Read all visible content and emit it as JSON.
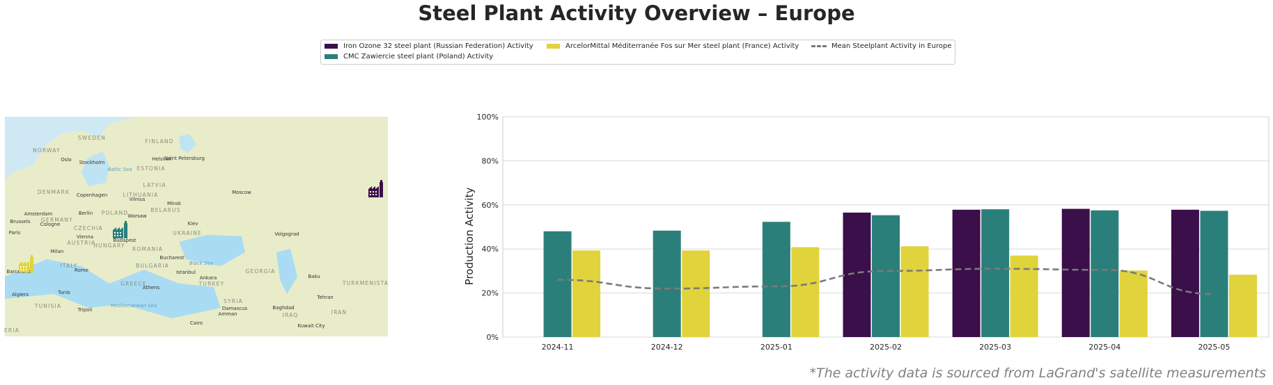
{
  "title": "Steel Plant Activity Overview – Europe",
  "footnote": "*The activity data is sourced from LaGrand's satellite measurements",
  "legend": {
    "items": [
      {
        "label": "Iron Ozone 32 steel plant (Russian Federation) Activity",
        "color": "#3b0f4a",
        "kind": "bar"
      },
      {
        "label": "CMC Zawiercie steel plant (Poland) Activity",
        "color": "#2b7f7b",
        "kind": "bar"
      },
      {
        "label": "ArcelorMittal Méditerranée Fos sur Mer steel plant (France) Activity",
        "color": "#e0d33c",
        "kind": "bar"
      },
      {
        "label": "Mean Steelplant Activity in Europe",
        "color": "#7a7a7a",
        "kind": "line"
      }
    ]
  },
  "map": {
    "labels": [
      {
        "text": "SWEDEN",
        "kind": "country"
      },
      {
        "text": "FINLAND",
        "kind": "country"
      },
      {
        "text": "NORWAY",
        "kind": "country"
      },
      {
        "text": "Oslo",
        "kind": "city"
      },
      {
        "text": "Stockholm",
        "kind": "city"
      },
      {
        "text": "Helsinki",
        "kind": "city"
      },
      {
        "text": "Saint Petersburg",
        "kind": "city"
      },
      {
        "text": "ESTONIA",
        "kind": "country"
      },
      {
        "text": "Baltic Sea",
        "kind": "water"
      },
      {
        "text": "DENMARK",
        "kind": "country"
      },
      {
        "text": "Copenhagen",
        "kind": "city"
      },
      {
        "text": "LITHUANIA",
        "kind": "country"
      },
      {
        "text": "LATVIA",
        "kind": "country"
      },
      {
        "text": "Moscow",
        "kind": "city"
      },
      {
        "text": "Vilnius",
        "kind": "city"
      },
      {
        "text": "Minsk",
        "kind": "city"
      },
      {
        "text": "BELARUS",
        "kind": "country"
      },
      {
        "text": "Amsterdam",
        "kind": "city"
      },
      {
        "text": "Berlin",
        "kind": "city"
      },
      {
        "text": "POLAND",
        "kind": "country"
      },
      {
        "text": "GERMANY",
        "kind": "country"
      },
      {
        "text": "Brussels",
        "kind": "city"
      },
      {
        "text": "Cologne",
        "kind": "city"
      },
      {
        "text": "Warsaw",
        "kind": "city"
      },
      {
        "text": "Kiev",
        "kind": "city"
      },
      {
        "text": "UKRAINE",
        "kind": "country"
      },
      {
        "text": "Paris",
        "kind": "city"
      },
      {
        "text": "CZECHIA",
        "kind": "country"
      },
      {
        "text": "Vienna",
        "kind": "city"
      },
      {
        "text": "AUSTRIA",
        "kind": "country"
      },
      {
        "text": "Budapest",
        "kind": "city"
      },
      {
        "text": "HUNGARY",
        "kind": "country"
      },
      {
        "text": "Volgograd",
        "kind": "city"
      },
      {
        "text": "Milan",
        "kind": "city"
      },
      {
        "text": "ROMANIA",
        "kind": "country"
      },
      {
        "text": "Bucharest",
        "kind": "city"
      },
      {
        "text": "ITALY",
        "kind": "country"
      },
      {
        "text": "BULGARIA",
        "kind": "country"
      },
      {
        "text": "Black Sea",
        "kind": "water"
      },
      {
        "text": "Rome",
        "kind": "city"
      },
      {
        "text": "Istanbul",
        "kind": "city"
      },
      {
        "text": "GEORGIA",
        "kind": "country"
      },
      {
        "text": "Barcelona",
        "kind": "city"
      },
      {
        "text": "Ankara",
        "kind": "city"
      },
      {
        "text": "Baku",
        "kind": "city"
      },
      {
        "text": "GREECE",
        "kind": "country"
      },
      {
        "text": "TURKEY",
        "kind": "country"
      },
      {
        "text": "TURKMENISTA",
        "kind": "country"
      },
      {
        "text": "Athens",
        "kind": "city"
      },
      {
        "text": "Algiers",
        "kind": "city"
      },
      {
        "text": "Tunis",
        "kind": "city"
      },
      {
        "text": "Tehran",
        "kind": "city"
      },
      {
        "text": "TUNISIA",
        "kind": "country"
      },
      {
        "text": "SYRIA",
        "kind": "country"
      },
      {
        "text": "Mediterranean Sea",
        "kind": "water"
      },
      {
        "text": "Tripoli",
        "kind": "city"
      },
      {
        "text": "Damascus",
        "kind": "city"
      },
      {
        "text": "Baghdad",
        "kind": "city"
      },
      {
        "text": "Amman",
        "kind": "city"
      },
      {
        "text": "IRAQ",
        "kind": "country"
      },
      {
        "text": "IRAN",
        "kind": "country"
      },
      {
        "text": "Cairo",
        "kind": "city"
      },
      {
        "text": "Kuwait City",
        "kind": "city"
      },
      {
        "text": "ERIA",
        "kind": "country"
      }
    ],
    "markers": [
      {
        "plant": "Iron Ozone 32",
        "color": "#3b0f4a",
        "icon": "factory-icon"
      },
      {
        "plant": "CMC Zawiercie",
        "color": "#2b7f7b",
        "icon": "factory-icon"
      },
      {
        "plant": "ArcelorMittal Fos sur Mer",
        "color": "#e0d33c",
        "icon": "factory-icon"
      }
    ]
  },
  "chart_data": {
    "type": "bar",
    "title": "",
    "xlabel": "",
    "ylabel": "Production Activity",
    "ylim": [
      0,
      100
    ],
    "yticks": [
      "0%",
      "20%",
      "40%",
      "60%",
      "80%",
      "100%"
    ],
    "categories": [
      "2024-11",
      "2024-12",
      "2025-01",
      "2025-02",
      "2025-03",
      "2025-04",
      "2025-05"
    ],
    "grid": true,
    "legend_position": "top-center",
    "series": [
      {
        "name": "Iron Ozone 32 steel plant (Russian Federation) Activity",
        "color": "#3b0f4a",
        "values": [
          null,
          null,
          null,
          56.5,
          57.8,
          58.2,
          57.8
        ]
      },
      {
        "name": "CMC Zawiercie steel plant (Poland) Activity",
        "color": "#2b7f7b",
        "values": [
          48.0,
          48.3,
          52.3,
          55.3,
          58.0,
          57.5,
          57.3
        ]
      },
      {
        "name": "ArcelorMittal Méditerranée Fos sur Mer steel plant (France) Activity",
        "color": "#e0d33c",
        "values": [
          39.3,
          39.3,
          40.8,
          41.2,
          37.0,
          30.2,
          28.3
        ]
      }
    ],
    "line": {
      "name": "Mean Steelplant Activity in Europe",
      "color": "#7a7a7a",
      "style": "dashed",
      "values": [
        26.0,
        22.0,
        23.0,
        30.0,
        31.0,
        30.5,
        19.5
      ]
    }
  }
}
